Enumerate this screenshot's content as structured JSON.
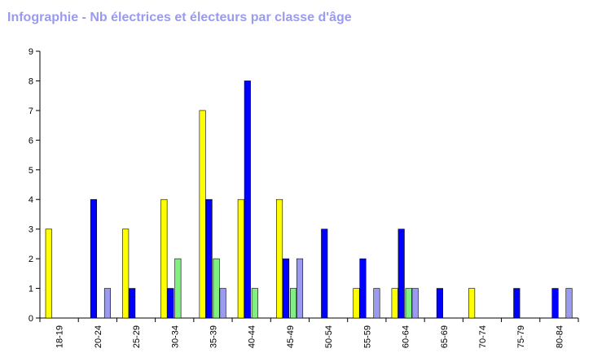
{
  "chart_data": {
    "type": "bar",
    "title": "Infographie - Nb électrices et électeurs par classe d'âge",
    "xlabel": "",
    "ylabel": "",
    "ylim": [
      0,
      9
    ],
    "yticks": [
      0,
      1,
      2,
      3,
      4,
      5,
      6,
      7,
      8,
      9
    ],
    "categories": [
      "18-19",
      "20-24",
      "25-29",
      "30-34",
      "35-39",
      "40-44",
      "45-49",
      "50-54",
      "55-59",
      "60-64",
      "65-69",
      "70-74",
      "75-79",
      "80-84"
    ],
    "series": [
      {
        "color": "#ffff00",
        "values": [
          3,
          0,
          3,
          4,
          7,
          4,
          4,
          0,
          1,
          1,
          0,
          1,
          0,
          0
        ]
      },
      {
        "color": "#0000ff",
        "values": [
          0,
          4,
          1,
          1,
          4,
          8,
          2,
          3,
          2,
          3,
          1,
          0,
          1,
          1
        ]
      },
      {
        "color": "#80f080",
        "values": [
          0,
          0,
          0,
          2,
          2,
          1,
          1,
          0,
          0,
          1,
          0,
          0,
          0,
          0
        ]
      },
      {
        "color": "#9a9af0",
        "values": [
          0,
          1,
          0,
          0,
          1,
          0,
          2,
          0,
          1,
          1,
          0,
          0,
          0,
          1
        ]
      }
    ]
  }
}
